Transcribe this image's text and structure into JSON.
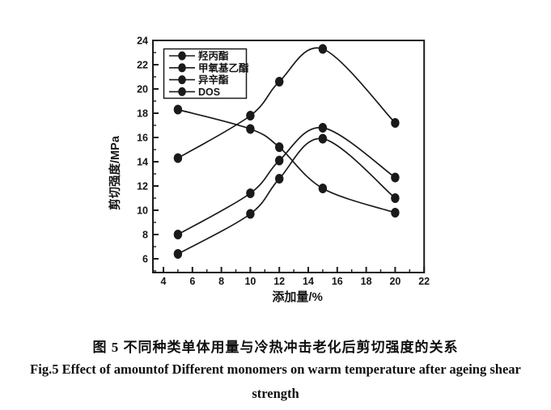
{
  "figure": {
    "caption_zh": "图 5 不同种类单体用量与冷热冲击老化后剪切强度的关系",
    "caption_en_line1": "Fig.5 Effect of amountof Different monomers on warm temperature after ageing shear",
    "caption_en_line2": "strength"
  },
  "chart_data": {
    "type": "line",
    "title": "",
    "xlabel": "添加量/%",
    "ylabel": "剪切强度/MPa",
    "x": [
      5,
      10,
      12,
      15,
      20
    ],
    "series": [
      {
        "name": "羟丙酯",
        "values": [
          14.3,
          17.8,
          20.6,
          23.3,
          17.2
        ]
      },
      {
        "name": "甲氧基乙酯",
        "values": [
          18.3,
          16.7,
          15.2,
          11.8,
          9.8
        ]
      },
      {
        "name": "异辛酯",
        "values": [
          8.0,
          11.4,
          14.1,
          16.8,
          12.7
        ]
      },
      {
        "name": "DOS",
        "values": [
          6.4,
          9.7,
          12.6,
          15.9,
          11.0
        ]
      }
    ],
    "xlim": [
      3.27,
      22
    ],
    "ylim": [
      4.87,
      24
    ],
    "x_ticks_major": [
      4,
      6,
      8,
      10,
      12,
      14,
      16,
      18,
      20,
      22
    ],
    "y_ticks_major": [
      6,
      8,
      10,
      12,
      14,
      16,
      18,
      20,
      22,
      24
    ],
    "minor_tick_step": 1,
    "grid": false,
    "legend_position": "top-left",
    "marker": "filled-circle",
    "line_color": "#1a1a1a",
    "text_color": "#151515",
    "background": "#ffffff"
  }
}
